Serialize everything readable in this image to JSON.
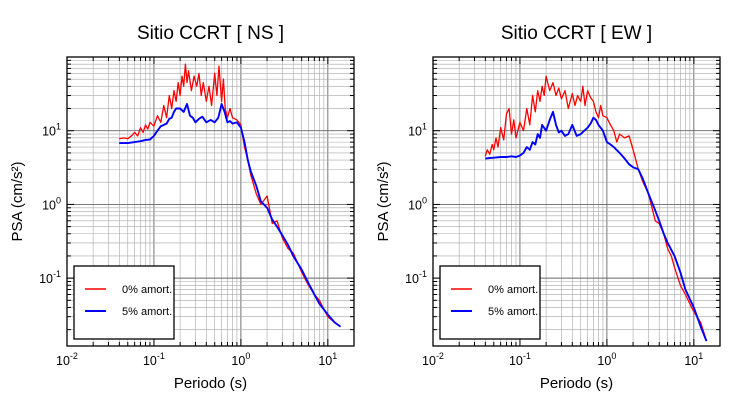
{
  "chart_data": [
    {
      "type": "line",
      "title": "Sitio CCRT [ NS ]",
      "xlabel": "Periodo (s)",
      "ylabel": "PSA (cm/s²)",
      "xscale": "log",
      "yscale": "log",
      "xlim": [
        0.01,
        20
      ],
      "ylim": [
        0.012,
        100
      ],
      "xticks": [
        0.01,
        0.1,
        1,
        10
      ],
      "xtick_labels": [
        {
          "base": "10",
          "exp": "-2"
        },
        {
          "base": "10",
          "exp": "-1"
        },
        {
          "base": "10",
          "exp": "0"
        },
        {
          "base": "10",
          "exp": "1"
        }
      ],
      "yticks": [
        0.1,
        1,
        10
      ],
      "ytick_labels": [
        {
          "base": "10",
          "exp": "-1"
        },
        {
          "base": "10",
          "exp": "0"
        },
        {
          "base": "10",
          "exp": "1"
        }
      ],
      "grid": true,
      "legend_position": "bottom-left",
      "series": [
        {
          "name": "0% amort.",
          "color": "#ff0000",
          "x": [
            0.04,
            0.045,
            0.05,
            0.055,
            0.06,
            0.065,
            0.07,
            0.075,
            0.08,
            0.085,
            0.09,
            0.1,
            0.11,
            0.12,
            0.13,
            0.14,
            0.15,
            0.16,
            0.17,
            0.18,
            0.19,
            0.2,
            0.21,
            0.22,
            0.23,
            0.24,
            0.25,
            0.27,
            0.29,
            0.31,
            0.33,
            0.35,
            0.37,
            0.4,
            0.43,
            0.46,
            0.5,
            0.53,
            0.56,
            0.6,
            0.63,
            0.66,
            0.7,
            0.75,
            0.8,
            0.9,
            1.0,
            1.1,
            1.2,
            1.3,
            1.5,
            1.7,
            2.0,
            2.3,
            2.6,
            3.0,
            3.5,
            4.0,
            4.5,
            5.0,
            6.0,
            7.0,
            8.0,
            9.0,
            10.0,
            12.0,
            14.0
          ],
          "y": [
            7.8,
            8.0,
            7.8,
            8.5,
            9.5,
            8.5,
            11.0,
            9.5,
            12.0,
            10.5,
            13.0,
            11.5,
            16.0,
            13.0,
            22.0,
            15.0,
            30.0,
            20.0,
            35.0,
            25.0,
            45.0,
            30.0,
            55.0,
            40.0,
            80.0,
            45.0,
            65.0,
            35.0,
            55.0,
            40.0,
            60.0,
            30.0,
            45.0,
            25.0,
            40.0,
            22.0,
            60.0,
            30.0,
            75.0,
            25.0,
            50.0,
            20.0,
            15.0,
            20.0,
            15.0,
            14.0,
            12.0,
            6.0,
            4.0,
            2.5,
            1.4,
            1.0,
            1.3,
            0.55,
            0.6,
            0.35,
            0.25,
            0.22,
            0.16,
            0.12,
            0.08,
            0.06,
            0.05,
            0.038,
            0.03,
            0.025,
            0.022
          ]
        },
        {
          "name": "5% amort.",
          "color": "#0000ff",
          "x": [
            0.04,
            0.05,
            0.06,
            0.07,
            0.08,
            0.09,
            0.1,
            0.11,
            0.12,
            0.13,
            0.14,
            0.15,
            0.16,
            0.17,
            0.18,
            0.2,
            0.22,
            0.24,
            0.26,
            0.28,
            0.3,
            0.33,
            0.36,
            0.4,
            0.45,
            0.5,
            0.55,
            0.6,
            0.65,
            0.7,
            0.75,
            0.8,
            0.9,
            1.0,
            1.1,
            1.2,
            1.3,
            1.5,
            1.7,
            2.0,
            2.3,
            2.6,
            3.0,
            3.5,
            4.0,
            5.0,
            6.0,
            7.0,
            8.0,
            10.0,
            12.0,
            14.0
          ],
          "y": [
            6.8,
            6.8,
            7.0,
            7.2,
            7.5,
            7.6,
            8.5,
            10.0,
            11.5,
            12.0,
            12.5,
            14.5,
            15.0,
            18.0,
            20.0,
            20.0,
            18.0,
            23.0,
            16.0,
            15.0,
            13.0,
            14.5,
            15.5,
            13.0,
            14.0,
            13.0,
            15.0,
            23.0,
            18.0,
            13.0,
            13.5,
            12.5,
            13.0,
            11.0,
            7.0,
            4.0,
            2.8,
            1.8,
            1.1,
            0.9,
            0.62,
            0.5,
            0.38,
            0.28,
            0.2,
            0.13,
            0.085,
            0.06,
            0.045,
            0.032,
            0.025,
            0.022
          ]
        }
      ]
    },
    {
      "type": "line",
      "title": "Sitio CCRT [ EW ]",
      "xlabel": "Periodo (s)",
      "ylabel": "PSA (cm/s²)",
      "xscale": "log",
      "yscale": "log",
      "xlim": [
        0.01,
        20
      ],
      "ylim": [
        0.012,
        100
      ],
      "xticks": [
        0.01,
        0.1,
        1,
        10
      ],
      "xtick_labels": [
        {
          "base": "10",
          "exp": "-2"
        },
        {
          "base": "10",
          "exp": "-1"
        },
        {
          "base": "10",
          "exp": "0"
        },
        {
          "base": "10",
          "exp": "1"
        }
      ],
      "yticks": [
        0.1,
        1,
        10
      ],
      "ytick_labels": [
        {
          "base": "10",
          "exp": "-1"
        },
        {
          "base": "10",
          "exp": "0"
        },
        {
          "base": "10",
          "exp": "1"
        }
      ],
      "grid": true,
      "legend_position": "bottom-left",
      "series": [
        {
          "name": "0% amort.",
          "color": "#ff0000",
          "x": [
            0.04,
            0.042,
            0.045,
            0.048,
            0.05,
            0.053,
            0.056,
            0.06,
            0.065,
            0.07,
            0.075,
            0.08,
            0.085,
            0.09,
            0.1,
            0.11,
            0.12,
            0.13,
            0.14,
            0.15,
            0.16,
            0.17,
            0.18,
            0.19,
            0.2,
            0.22,
            0.24,
            0.26,
            0.28,
            0.3,
            0.33,
            0.36,
            0.4,
            0.43,
            0.46,
            0.5,
            0.53,
            0.56,
            0.6,
            0.65,
            0.7,
            0.75,
            0.8,
            0.85,
            0.9,
            1.0,
            1.1,
            1.2,
            1.3,
            1.4,
            1.6,
            1.8,
            2.0,
            2.3,
            2.6,
            3.0,
            3.3,
            3.6,
            4.0,
            4.5,
            5.0,
            5.5,
            6.0,
            7.0,
            8.0,
            9.0,
            10.0,
            12.0,
            14.0
          ],
          "y": [
            4.5,
            5.5,
            4.8,
            6.5,
            5.5,
            8.0,
            6.0,
            11.0,
            7.5,
            17.0,
            20.0,
            9.0,
            14.0,
            8.0,
            13.0,
            10.0,
            20.0,
            12.0,
            30.0,
            18.0,
            35.0,
            25.0,
            40.0,
            30.0,
            55.0,
            35.0,
            45.0,
            30.0,
            38.0,
            27.0,
            35.0,
            20.0,
            32.0,
            22.0,
            30.0,
            25.0,
            40.0,
            22.0,
            35.0,
            28.0,
            25.0,
            18.0,
            15.0,
            22.0,
            16.0,
            15.0,
            12.0,
            10.0,
            7.0,
            9.0,
            8.0,
            8.5,
            5.5,
            3.0,
            2.0,
            1.4,
            0.9,
            0.6,
            0.55,
            0.4,
            0.25,
            0.2,
            0.14,
            0.08,
            0.06,
            0.045,
            0.035,
            0.025,
            0.014
          ]
        },
        {
          "name": "5% amort.",
          "color": "#0000ff",
          "x": [
            0.04,
            0.05,
            0.06,
            0.07,
            0.08,
            0.09,
            0.1,
            0.11,
            0.12,
            0.13,
            0.14,
            0.15,
            0.16,
            0.17,
            0.18,
            0.2,
            0.22,
            0.24,
            0.26,
            0.28,
            0.3,
            0.33,
            0.36,
            0.4,
            0.45,
            0.5,
            0.55,
            0.6,
            0.65,
            0.7,
            0.75,
            0.8,
            0.9,
            1.0,
            1.1,
            1.2,
            1.4,
            1.6,
            1.8,
            2.0,
            2.3,
            2.6,
            3.0,
            3.5,
            4.0,
            4.5,
            5.0,
            6.0,
            7.0,
            8.0,
            10.0,
            12.0,
            14.0
          ],
          "y": [
            4.2,
            4.3,
            4.4,
            4.4,
            4.5,
            4.4,
            4.6,
            5.0,
            6.0,
            5.5,
            7.0,
            6.5,
            9.0,
            8.0,
            12.0,
            10.0,
            14.0,
            18.0,
            12.0,
            9.5,
            10.0,
            8.5,
            9.0,
            12.0,
            8.5,
            9.0,
            10.0,
            11.0,
            12.5,
            15.0,
            14.0,
            12.0,
            10.0,
            7.0,
            6.5,
            6.0,
            5.0,
            4.2,
            3.5,
            3.2,
            3.0,
            2.2,
            1.4,
            0.9,
            0.6,
            0.4,
            0.3,
            0.2,
            0.12,
            0.07,
            0.04,
            0.022,
            0.014
          ]
        }
      ]
    }
  ]
}
